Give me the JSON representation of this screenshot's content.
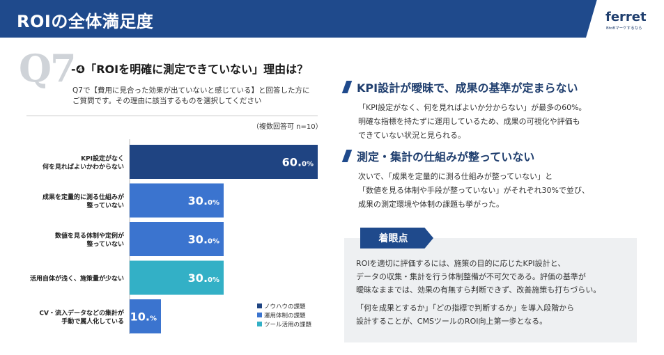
{
  "header": {
    "title": "ROIの全体満足度",
    "logo": "ferret",
    "logo_sub": "BtoBマーケするなら"
  },
  "question": {
    "number": "Q7",
    "title": "-❹「ROIを明確に測定できていない」理由は？",
    "desc_line1": "Q7で【費用に見合った効果が出ていないと感じている】と回答した方に",
    "desc_line2": "ご質問です。その理由に該当するものを選択してください",
    "note": "（複数回答可 n=10）"
  },
  "chart_data": {
    "type": "bar",
    "orientation": "horizontal",
    "categories": [
      [
        "KPI設定がなく",
        "何を見ればよいかわからない"
      ],
      [
        "成果を定量的に測る仕組みが",
        "整っていない"
      ],
      [
        "数値を見る体制や定例が",
        "整っていない"
      ],
      [
        "活用自体が浅く、施策量が少ない"
      ],
      [
        "CV・流入データなどの集計が",
        "手動で属人化している"
      ]
    ],
    "values": [
      60.0,
      30.0,
      30.0,
      30.0,
      10.0
    ],
    "value_labels": [
      {
        "num": "60.",
        "dec": "0%"
      },
      {
        "num": "30.",
        "dec": "0%"
      },
      {
        "num": "30.",
        "dec": "0%"
      },
      {
        "num": "30.",
        "dec": "0%"
      },
      {
        "num": "10.",
        "dec": "%"
      }
    ],
    "groups": [
      "ノウハウの課題",
      "運用体制の課題",
      "運用体制の課題",
      "ツール活用の課題",
      "運用体制の課題"
    ],
    "xlim": [
      0,
      60
    ],
    "legend": {
      "position": "bottom-right",
      "items": [
        {
          "name": "ノウハウの課題",
          "color": "#1f4482"
        },
        {
          "name": "運用体制の課題",
          "color": "#3b74cf"
        },
        {
          "name": "ツール活用の課題",
          "color": "#33b0c6"
        }
      ]
    }
  },
  "points": [
    {
      "title": "KPI設計が曖昧で、成果の基準が定まらない",
      "lines": [
        "「KPI設定がなく、何を見ればよいか分からない」が最多の60%。",
        "明確な指標を持たずに運用しているため、成果の可視化や評価も",
        "できていない状況と見られる。"
      ]
    },
    {
      "title": "測定・集計の仕組みが整っていない",
      "lines": [
        "次いで、「成果を定量的に測る仕組みが整っていない」と",
        "「数値を見る体制や手段が整っていない」がそれぞれ30%で並び、",
        "成果の測定環境や体制の課題も挙がった。"
      ]
    }
  ],
  "focus": {
    "label": "着眼点",
    "para1": [
      "ROIを適切に評価するには、施策の目的に応じたKPI設計と、",
      "データの収集・集計を行う体制整備が不可欠である。評価の基準が",
      "曖昧なままでは、効果の有無すら判断できず、改善施策も打ちづらい。"
    ],
    "para2": [
      "「何を成果とするか」「どの指標で判断するか」を導入段階から",
      "設計することが、CMSツールのROI向上第一歩となる。"
    ]
  }
}
